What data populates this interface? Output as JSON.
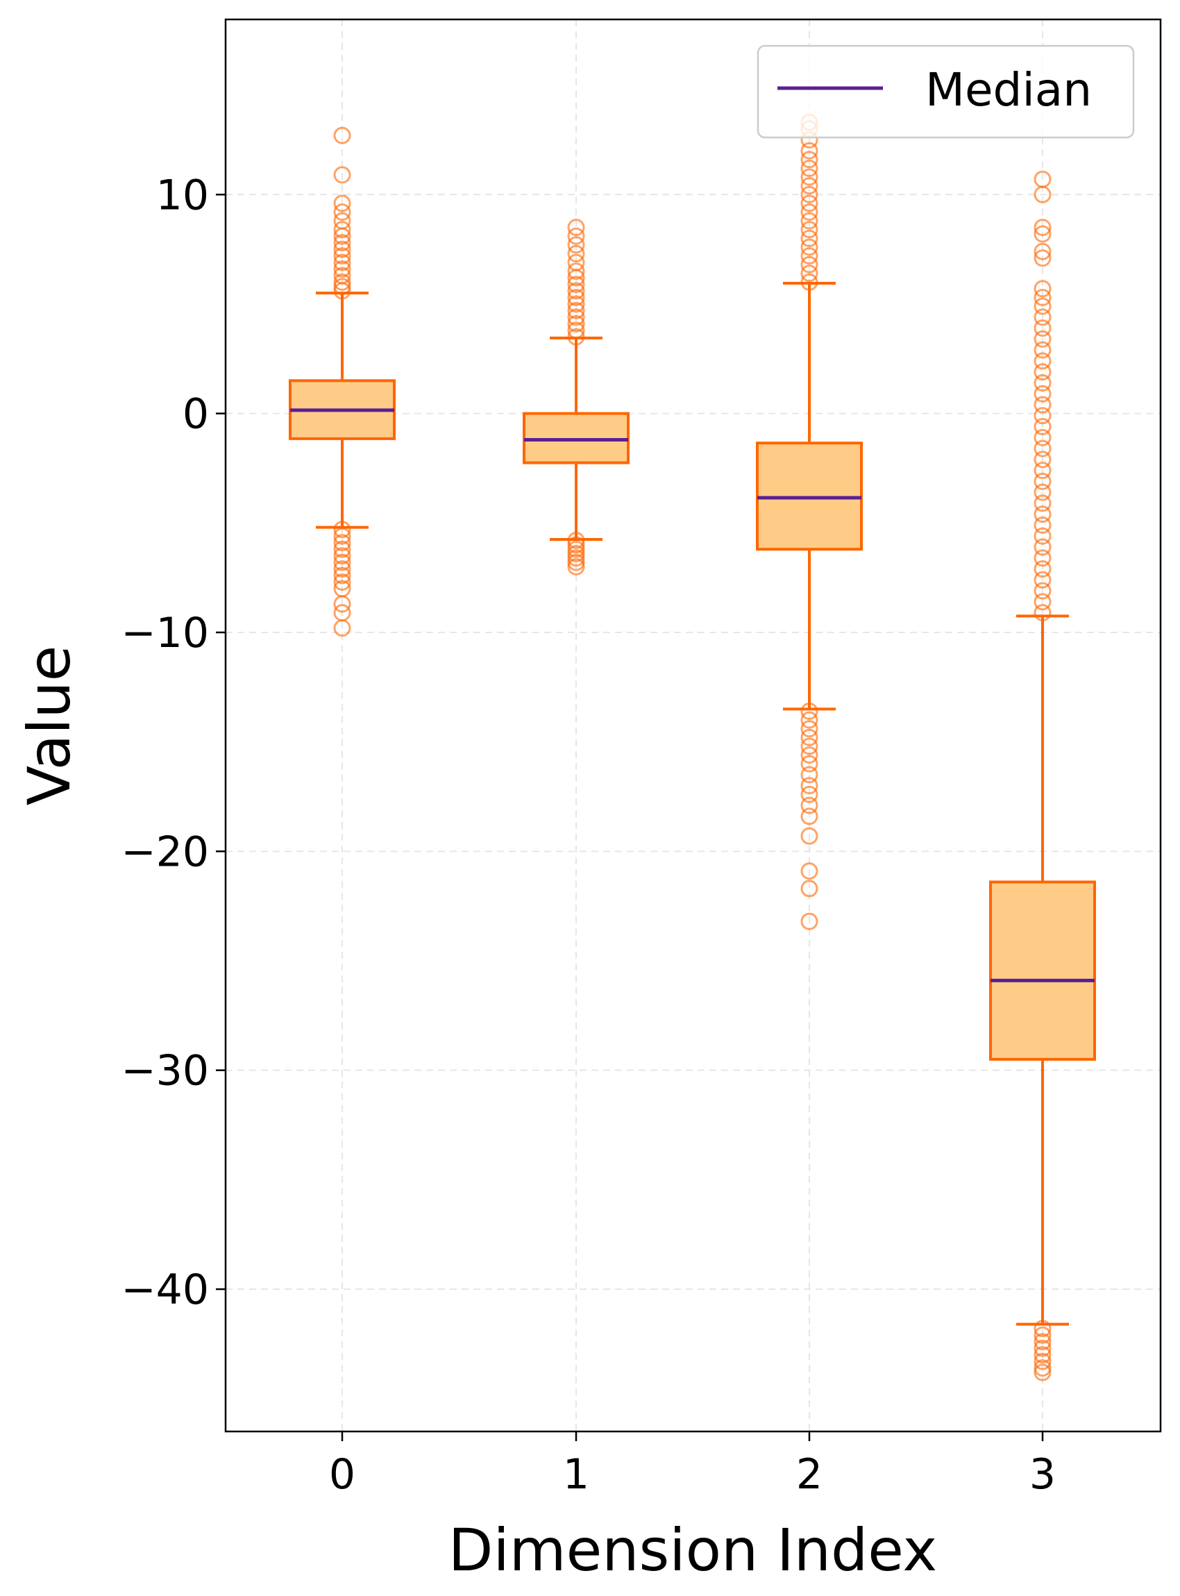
{
  "chart_data": {
    "type": "box",
    "xlabel": "Dimension Index",
    "ylabel": "Value",
    "categories": [
      "0",
      "1",
      "2",
      "3"
    ],
    "x_ticks": [
      "0",
      "1",
      "2",
      "3"
    ],
    "y_ticks": [
      10,
      0,
      -10,
      -20,
      -30,
      -40
    ],
    "y_tick_labels": [
      "10",
      "0",
      "−10",
      "−20",
      "−30",
      "−40"
    ],
    "ylim": [
      -46.5,
      18
    ],
    "grid": true,
    "legend": {
      "entries": [
        "Median"
      ],
      "placement": "top-right"
    },
    "colors": {
      "box_fill": "#ffcc88",
      "box_edge": "#ff6600",
      "median": "#5b1f94",
      "flier": "#ff6600",
      "grid": "#e6e6e6"
    },
    "boxes": [
      {
        "category": "0",
        "whisker_low": -5.2,
        "q1": -1.15,
        "median": 0.15,
        "q3": 1.5,
        "whisker_high": 5.5,
        "fliers_high": [
          5.6,
          5.8,
          6.0,
          6.3,
          6.6,
          6.9,
          7.2,
          7.5,
          7.8,
          8.1,
          8.4,
          8.8,
          9.2,
          9.6,
          10.9,
          12.7
        ],
        "fliers_low": [
          -5.3,
          -5.6,
          -5.9,
          -6.2,
          -6.5,
          -6.8,
          -7.1,
          -7.4,
          -7.7,
          -8.0,
          -8.7,
          -9.1,
          -9.8
        ]
      },
      {
        "category": "1",
        "whisker_low": -5.75,
        "q1": -2.25,
        "median": -1.2,
        "q3": 0.0,
        "whisker_high": 3.45,
        "fliers_high": [
          3.5,
          3.8,
          4.1,
          4.4,
          4.7,
          5.0,
          5.3,
          5.6,
          5.9,
          6.2,
          6.5,
          6.9,
          7.3,
          7.7,
          8.1,
          8.5
        ],
        "fliers_low": [
          -5.8,
          -6.0,
          -6.2,
          -6.4,
          -6.6,
          -6.8,
          -7.0
        ]
      },
      {
        "category": "2",
        "whisker_low": -13.5,
        "q1": -6.2,
        "median": -3.85,
        "q3": -1.35,
        "whisker_high": 5.95,
        "fliers_high": [
          6.0,
          6.4,
          6.8,
          7.2,
          7.6,
          8.0,
          8.4,
          8.8,
          9.2,
          9.6,
          10.0,
          10.4,
          10.8,
          11.2,
          11.6,
          12.0,
          12.5,
          13.0,
          13.3
        ],
        "fliers_low": [
          -13.6,
          -14.0,
          -14.4,
          -14.8,
          -15.2,
          -15.6,
          -16.0,
          -16.5,
          -17.0,
          -17.4,
          -17.9,
          -18.4,
          -19.3,
          -20.9,
          -21.7,
          -23.2
        ]
      },
      {
        "category": "3",
        "whisker_low": -41.6,
        "q1": -29.5,
        "median": -25.9,
        "q3": -21.4,
        "whisker_high": -9.25,
        "fliers_high": [
          -9.1,
          -8.6,
          -8.1,
          -7.6,
          -7.1,
          -6.6,
          -6.1,
          -5.6,
          -5.1,
          -4.6,
          -4.1,
          -3.6,
          -3.1,
          -2.6,
          -2.1,
          -1.6,
          -1.1,
          -0.6,
          -0.1,
          0.4,
          0.9,
          1.4,
          1.9,
          2.4,
          2.9,
          3.4,
          3.9,
          4.4,
          4.9,
          5.3,
          5.7,
          7.1,
          7.4,
          8.2,
          8.5,
          10.0,
          10.7
        ],
        "fliers_low": [
          -41.8,
          -42.1,
          -42.4,
          -42.7,
          -43.0,
          -43.3,
          -43.6,
          -43.8
        ]
      }
    ]
  }
}
